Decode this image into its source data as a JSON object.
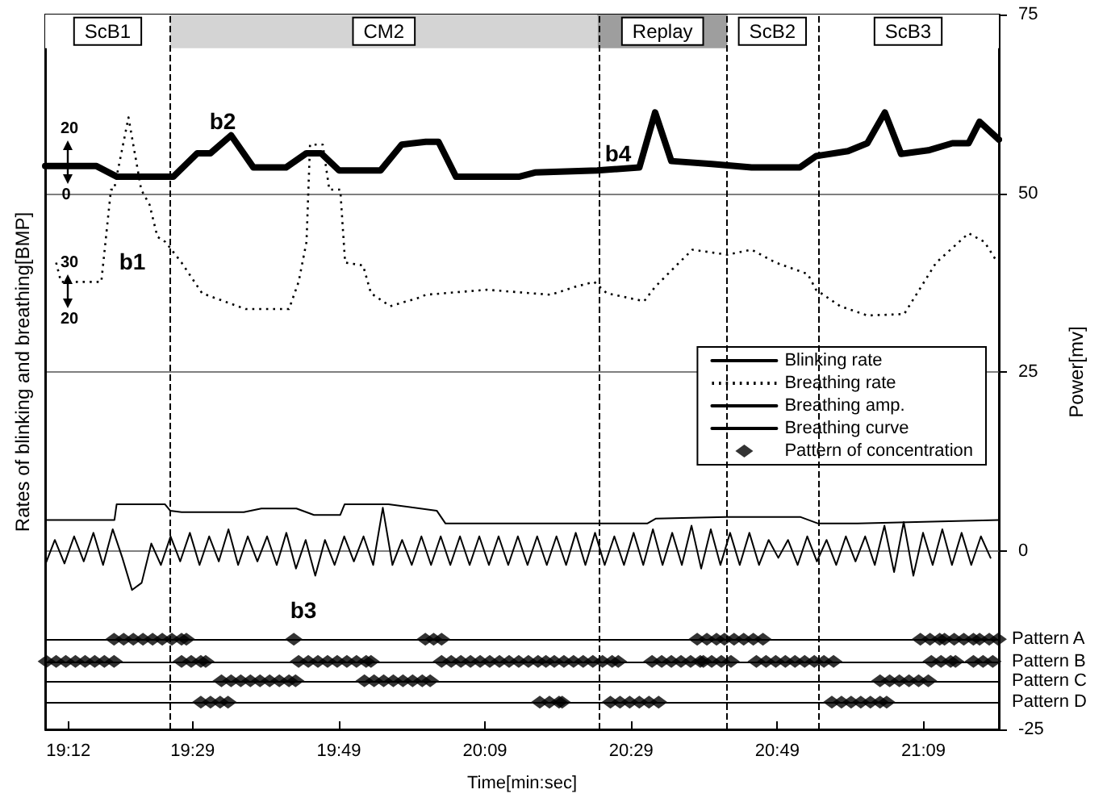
{
  "chart_data": {
    "type": "line",
    "xlabel": "Time[min:sec]",
    "ylabel": "Rates of blinking and breathing[BMP]",
    "y2label": "Power[mv]",
    "xlim": [
      19.147,
      21.322
    ],
    "xticks": [
      {
        "value": 19.2,
        "label": "19:12"
      },
      {
        "value": 19.4833,
        "label": "19:29"
      },
      {
        "value": 19.8167,
        "label": "19:49"
      },
      {
        "value": 20.15,
        "label": "20:09"
      },
      {
        "value": 20.4833,
        "label": "20:29"
      },
      {
        "value": 20.8167,
        "label": "20:49"
      },
      {
        "value": 21.15,
        "label": "21:09"
      }
    ],
    "y2lim": [
      -25,
      75
    ],
    "y2ticks": [
      -25,
      0,
      25,
      50,
      75
    ],
    "grid": "y",
    "legend": "right",
    "series": [
      {
        "name": "Blinking rate",
        "axis": "y2",
        "color": "#000000",
        "line_style": "solid",
        "marker": "none",
        "x": [
          19.147,
          19.264,
          19.311,
          19.439,
          19.494,
          19.524,
          19.571,
          19.622,
          19.696,
          19.743,
          19.776,
          19.817,
          19.912,
          19.96,
          20.015,
          20.044,
          20.084,
          20.227,
          20.264,
          20.406,
          20.502,
          20.538,
          20.575,
          20.667,
          20.758,
          20.868,
          20.905,
          20.978,
          21.022,
          21.062,
          21.099,
          21.161,
          21.216,
          21.253,
          21.278,
          21.322
        ],
        "values": [
          53.8,
          53.8,
          52.3,
          52.3,
          55.6,
          55.6,
          58.1,
          53.6,
          53.6,
          55.6,
          55.6,
          53.2,
          53.2,
          56.8,
          57.2,
          57.2,
          52.3,
          52.3,
          52.9,
          53.2,
          53.6,
          61.3,
          54.5,
          54.1,
          53.6,
          53.6,
          55.2,
          55.9,
          57,
          61.3,
          55.5,
          56,
          57,
          57,
          60,
          57.5
        ]
      },
      {
        "name": "Breathing rate",
        "axis": "y2",
        "color": "#000000",
        "line_style": "dotted",
        "marker": "none",
        "x": [
          19.172,
          19.183,
          19.275,
          19.297,
          19.304,
          19.337,
          19.366,
          19.385,
          19.403,
          19.421,
          19.458,
          19.505,
          19.604,
          19.703,
          19.725,
          19.743,
          19.751,
          19.78,
          19.795,
          19.82,
          19.831,
          19.872,
          19.89,
          19.934,
          20.0,
          20.015,
          20.154,
          20.3,
          20.355,
          20.399,
          20.428,
          20.513,
          20.538,
          20.593,
          20.623,
          20.703,
          20.758,
          20.813,
          20.886,
          20.905,
          20.96,
          21.022,
          21.106,
          21.179,
          21.253,
          21.289,
          21.319
        ],
        "values": [
          40.3,
          37.6,
          37.6,
          50.5,
          50.5,
          60.6,
          50.5,
          48.4,
          43.9,
          43.2,
          40.3,
          36.0,
          33.8,
          33.8,
          37.6,
          43.2,
          56.8,
          56.8,
          50.5,
          50.5,
          40.3,
          39.9,
          36.0,
          34.2,
          35.4,
          35.8,
          36.5,
          35.8,
          36.9,
          37.6,
          36.0,
          34.9,
          36.9,
          40.3,
          42.1,
          41.4,
          42.1,
          40.3,
          38.7,
          36.5,
          34.2,
          32.9,
          33.1,
          40.3,
          44.4,
          43.2,
          40.3
        ]
      },
      {
        "name": "Breathing amp.",
        "axis": "y2",
        "color": "#000000",
        "line_style": "solid",
        "marker": "none",
        "x": [
          19.147,
          19.305,
          19.31,
          19.42,
          19.432,
          19.458,
          19.6,
          19.64,
          19.72,
          19.76,
          19.82,
          19.83,
          19.93,
          20.04,
          20.06,
          20.52,
          20.54,
          20.7,
          20.87,
          20.91,
          21.0,
          21.322
        ],
        "values": [
          4.3,
          4.3,
          6.5,
          6.5,
          5.6,
          5.4,
          5.4,
          5.9,
          5.9,
          5.0,
          5.0,
          6.5,
          6.5,
          5.6,
          3.8,
          3.8,
          4.5,
          4.7,
          4.7,
          3.8,
          3.8,
          4.3
        ]
      },
      {
        "name": "Breathing curve",
        "axis": "y2",
        "color": "#000000",
        "line_style": "solid",
        "marker": "none",
        "x": [
          19.147,
          19.169,
          19.191,
          19.213,
          19.235,
          19.257,
          19.279,
          19.301,
          19.323,
          19.345,
          19.367,
          19.389,
          19.411,
          19.433,
          19.455,
          19.477,
          19.499,
          19.521,
          19.543,
          19.565,
          19.587,
          19.609,
          19.631,
          19.653,
          19.675,
          19.697,
          19.719,
          19.741,
          19.763,
          19.785,
          19.807,
          19.829,
          19.851,
          19.873,
          19.895,
          19.917,
          19.939,
          19.961,
          19.983,
          20.005,
          20.027,
          20.049,
          20.071,
          20.093,
          20.115,
          20.137,
          20.159,
          20.181,
          20.203,
          20.225,
          20.247,
          20.269,
          20.291,
          20.313,
          20.335,
          20.357,
          20.379,
          20.401,
          20.423,
          20.445,
          20.467,
          20.489,
          20.511,
          20.533,
          20.555,
          20.577,
          20.599,
          20.621,
          20.643,
          20.665,
          20.687,
          20.709,
          20.731,
          20.753,
          20.775,
          20.797,
          20.819,
          20.841,
          20.863,
          20.885,
          20.907,
          20.929,
          20.951,
          20.973,
          20.995,
          21.017,
          21.039,
          21.061,
          21.083,
          21.105,
          21.127,
          21.149,
          21.171,
          21.193,
          21.215,
          21.237,
          21.259,
          21.281,
          21.303
        ],
        "values": [
          -2,
          1.5,
          -1.8,
          2,
          -1.5,
          2.5,
          -2,
          3,
          -1,
          -5.5,
          -4.5,
          1,
          -2,
          2,
          -1.5,
          2.5,
          -2,
          2,
          -1.5,
          3,
          -2,
          2,
          -1.5,
          2,
          -2,
          2.5,
          -2.5,
          1.5,
          -3.5,
          1.5,
          -2,
          2,
          -1.5,
          2,
          -2,
          6,
          -2,
          1.5,
          -2,
          2,
          -2,
          2,
          -2,
          2,
          -2,
          2,
          -2,
          2,
          -2,
          2,
          -2,
          2,
          -2,
          2,
          -2,
          2.5,
          -2,
          2.5,
          -2,
          2,
          -2,
          2.5,
          -2,
          3,
          -2,
          2.5,
          -2,
          3.5,
          -2.5,
          3,
          -2,
          2.5,
          -2,
          2.5,
          -2,
          1.5,
          -1,
          1.5,
          -2,
          2,
          -1.5,
          1.5,
          -2,
          2,
          -1.5,
          2,
          -2,
          3.5,
          -3,
          4,
          -3.5,
          2.5,
          -2,
          3,
          -2,
          2.5,
          -2,
          2,
          -1
        ]
      },
      {
        "name": "Pattern of concentration",
        "type": "scatter",
        "axis": "y2",
        "color": "#000000",
        "marker": "diamond",
        "x": [
          19.304,
          19.326,
          19.348,
          19.37,
          19.392,
          19.414,
          19.436,
          19.458,
          19.469,
          19.714,
          20.014,
          20.033,
          20.051,
          20.634,
          20.656,
          20.678,
          20.696,
          20.718,
          20.74,
          20.762,
          20.784,
          21.143,
          21.165,
          21.187,
          21.198,
          21.22,
          21.242,
          21.264,
          21.278,
          21.3,
          21.32,
          19.15,
          19.172,
          19.194,
          19.216,
          19.238,
          19.26,
          19.282,
          19.304,
          19.458,
          19.48,
          19.502,
          19.513,
          19.725,
          19.747,
          19.769,
          19.791,
          19.813,
          19.835,
          19.857,
          19.879,
          19.89,
          20.051,
          20.073,
          20.095,
          20.117,
          20.139,
          20.161,
          20.183,
          20.205,
          20.227,
          20.249,
          20.271,
          20.289,
          20.308,
          20.33,
          20.352,
          20.374,
          20.396,
          20.418,
          20.44,
          20.454,
          20.531,
          20.553,
          20.575,
          20.597,
          20.619,
          20.641,
          20.648,
          20.667,
          20.689,
          20.711,
          20.769,
          20.791,
          20.813,
          20.835,
          20.857,
          20.879,
          20.901,
          20.923,
          20.945,
          21.168,
          21.19,
          21.212,
          21.223,
          21.264,
          21.286,
          21.308,
          19.549,
          19.571,
          19.593,
          19.615,
          19.637,
          19.659,
          19.681,
          19.703,
          19.718,
          19.875,
          19.897,
          19.919,
          19.941,
          19.963,
          19.985,
          20.007,
          20.025,
          21.051,
          21.073,
          21.095,
          21.117,
          21.139,
          21.161,
          19.502,
          19.524,
          19.546,
          19.564,
          20.275,
          20.297,
          20.319,
          20.326,
          20.436,
          20.458,
          20.48,
          20.502,
          20.524,
          20.546,
          20.941,
          20.963,
          20.985,
          21.007,
          21.029,
          21.051,
          21.066
        ],
        "values": [
          -12.4,
          -12.4,
          -12.4,
          -12.4,
          -12.4,
          -12.4,
          -12.4,
          -12.4,
          -12.4,
          -12.4,
          -12.4,
          -12.4,
          -12.4,
          -12.4,
          -12.4,
          -12.4,
          -12.4,
          -12.4,
          -12.4,
          -12.4,
          -12.4,
          -12.4,
          -12.4,
          -12.4,
          -12.4,
          -12.4,
          -12.4,
          -12.4,
          -12.4,
          -12.4,
          -12.4,
          -15.5,
          -15.5,
          -15.5,
          -15.5,
          -15.5,
          -15.5,
          -15.5,
          -15.5,
          -15.5,
          -15.5,
          -15.5,
          -15.5,
          -15.5,
          -15.5,
          -15.5,
          -15.5,
          -15.5,
          -15.5,
          -15.5,
          -15.5,
          -15.5,
          -15.5,
          -15.5,
          -15.5,
          -15.5,
          -15.5,
          -15.5,
          -15.5,
          -15.5,
          -15.5,
          -15.5,
          -15.5,
          -15.5,
          -15.5,
          -15.5,
          -15.5,
          -15.5,
          -15.5,
          -15.5,
          -15.5,
          -15.5,
          -15.5,
          -15.5,
          -15.5,
          -15.5,
          -15.5,
          -15.5,
          -15.5,
          -15.5,
          -15.5,
          -15.5,
          -15.5,
          -15.5,
          -15.5,
          -15.5,
          -15.5,
          -15.5,
          -15.5,
          -15.5,
          -15.5,
          -15.5,
          -15.5,
          -15.5,
          -15.5,
          -15.5,
          -15.5,
          -15.5,
          -18.2,
          -18.2,
          -18.2,
          -18.2,
          -18.2,
          -18.2,
          -18.2,
          -18.2,
          -18.2,
          -18.2,
          -18.2,
          -18.2,
          -18.2,
          -18.2,
          -18.2,
          -18.2,
          -18.2,
          -18.2,
          -18.2,
          -18.2,
          -18.2,
          -18.2,
          -18.2,
          -21.2,
          -21.2,
          -21.2,
          -21.2,
          -21.2,
          -21.2,
          -21.2,
          -21.2,
          -21.2,
          -21.2,
          -21.2,
          -21.2,
          -21.2,
          -21.2,
          -21.2,
          -21.2,
          -21.2,
          -21.2,
          -21.2,
          -21.2,
          -21.2
        ]
      }
    ],
    "ref_lines": [
      {
        "axis": "x",
        "value": 19.432,
        "line_style": "dashed"
      },
      {
        "axis": "x",
        "value": 20.407,
        "line_style": "dashed"
      },
      {
        "axis": "x",
        "value": 20.703,
        "line_style": "dashed"
      },
      {
        "axis": "x",
        "value": 20.908,
        "line_style": "dashed"
      },
      {
        "axis": "y2",
        "value": -12.4,
        "label": "Pattern A",
        "line_style": "solid"
      },
      {
        "axis": "y2",
        "value": -15.5,
        "label": "Pattern B",
        "line_style": "solid"
      },
      {
        "axis": "y2",
        "value": -18.2,
        "label": "Pattern C",
        "line_style": "solid"
      },
      {
        "axis": "y2",
        "value": -21.2,
        "label": "Pattern D",
        "line_style": "solid"
      }
    ],
    "bands": [
      {
        "axis": "x",
        "from": 19.147,
        "to": 19.432,
        "label": "ScB1",
        "color": "#ffffff"
      },
      {
        "axis": "x",
        "from": 19.432,
        "to": 20.407,
        "label": "CM2",
        "color": "#d4d4d4"
      },
      {
        "axis": "x",
        "from": 20.407,
        "to": 20.703,
        "label": "Replay",
        "color": "#9e9e9e"
      },
      {
        "axis": "x",
        "from": 20.703,
        "to": 20.908,
        "label": "ScB2",
        "color": "#ffffff"
      },
      {
        "axis": "x",
        "from": 20.908,
        "to": 21.322,
        "label": "ScB3",
        "color": "#ffffff"
      }
    ],
    "annotations": [
      "b1",
      "b2",
      "b3",
      "b4",
      "20",
      "0",
      "30",
      "20"
    ]
  }
}
